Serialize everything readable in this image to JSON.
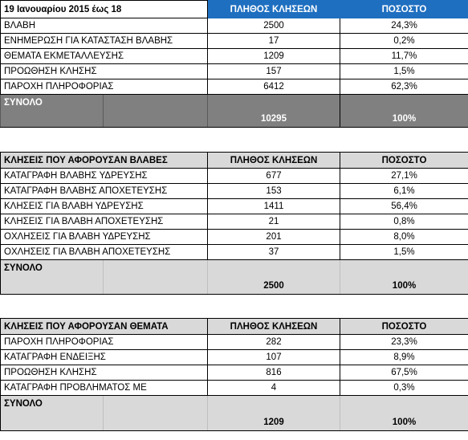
{
  "table1": {
    "date_label": "19 Ιανουαρίου 2015 έως 18",
    "col_count": "ΠΛΗΘΟΣ ΚΛΗΣΕΩΝ",
    "col_pct": "ΠΟΣΟΣΤΟ",
    "rows": [
      {
        "label": "ΒΛΑΒΗ",
        "count": "2500",
        "pct": "24,3%"
      },
      {
        "label": "ΕΝΗΜΕΡΩΣΗ ΓΙΑ ΚΑΤΑΣΤΑΣΗ ΒΛΑΒΗΣ",
        "count": "17",
        "pct": "0,2%"
      },
      {
        "label": "ΘΕΜΑΤΑ ΕΚΜΕΤΑΛΛΕΥΣΗΣ",
        "count": "1209",
        "pct": "11,7%"
      },
      {
        "label": "ΠΡΟΩΘΗΣΗ ΚΛΗΣΗΣ",
        "count": "157",
        "pct": "1,5%"
      },
      {
        "label": "ΠΑΡΟΧΗ ΠΛΗΡΟΦΟΡΙΑΣ",
        "count": "6412",
        "pct": "62,3%"
      }
    ],
    "total": {
      "label": "ΣΥΝΟΛΟ",
      "count": "10295",
      "pct": "100%"
    }
  },
  "table2": {
    "title": "ΚΛΗΣΕΙΣ ΠΟΥ ΑΦΟΡΟΥΣΑΝ ΒΛΑΒΕΣ",
    "col_count": "ΠΛΗΘΟΣ ΚΛΗΣΕΩΝ",
    "col_pct": "ΠΟΣΟΣΤΟ",
    "rows": [
      {
        "label": "ΚΑΤΑΓΡΑΦΗ ΒΛΑΒΗΣ ΥΔΡΕΥΣΗΣ",
        "count": "677",
        "pct": "27,1%"
      },
      {
        "label": "ΚΑΤΑΓΡΑΦΗ ΒΛΑΒΗΣ ΑΠΟΧΕΤΕΥΣΗΣ",
        "count": "153",
        "pct": "6,1%"
      },
      {
        "label": "ΚΛΗΣΕΙΣ ΓΙΑ ΒΛΑΒΗ ΥΔΡΕΥΣΗΣ",
        "count": "1411",
        "pct": "56,4%"
      },
      {
        "label": "ΚΛΗΣΕΙΣ ΓΙΑ ΒΛΑΒΗ ΑΠΟΧΕΤΕΥΣΗΣ",
        "count": "21",
        "pct": "0,8%"
      },
      {
        "label": "ΟΧΛΗΣΕΙΣ ΓΙΑ ΒΛΑΒΗ ΥΔΡΕΥΣΗΣ",
        "count": "201",
        "pct": "8,0%"
      },
      {
        "label": "ΟΧΛΗΣΕΙΣ ΓΙΑ ΒΛΑΒΗ ΑΠΟΧΕΤΕΥΣΗΣ",
        "count": "37",
        "pct": "1,5%"
      }
    ],
    "total": {
      "label": "ΣΥΝΟΛΟ",
      "count": "2500",
      "pct": "100%"
    }
  },
  "table3": {
    "title": "ΚΛΗΣΕΙΣ ΠΟΥ ΑΦΟΡΟΥΣΑΝ ΘΕΜΑΤΑ",
    "col_count": "ΠΛΗΘΟΣ ΚΛΗΣΕΩΝ",
    "col_pct": "ΠΟΣΟΣΤΟ",
    "rows": [
      {
        "label": "ΠΑΡΟΧΗ ΠΛΗΡΟΦΟΡΙΑΣ",
        "count": "282",
        "pct": "23,3%"
      },
      {
        "label": "ΚΑΤΑΓΡΑΦΗ ΕΝΔΕΙΞΗΣ",
        "count": "107",
        "pct": "8,9%"
      },
      {
        "label": "ΠΡΟΩΘΗΣΗ ΚΛΗΣΗΣ",
        "count": "816",
        "pct": "67,5%"
      },
      {
        "label": "ΚΑΤΑΓΡΑΦΗ ΠΡΟΒΛΗΜΑΤΟΣ ΜΕ",
        "count": "4",
        "pct": "0,3%"
      }
    ],
    "total": {
      "label": "ΣΥΝΟΛΟ",
      "count": "1209",
      "pct": "100%"
    }
  },
  "colors": {
    "header_blue": "#1f6fc0",
    "total_gray": "#808080",
    "section_gray": "#d9d9d9"
  }
}
